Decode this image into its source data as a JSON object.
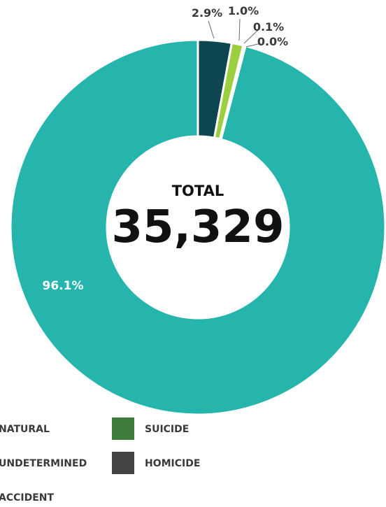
{
  "chart_data": {
    "type": "pie",
    "variant": "donut",
    "center_label": "TOTAL",
    "center_value": "35,329",
    "slices": [
      {
        "name": "HOMICIDE",
        "value": 2.9,
        "label": "2.9%",
        "color": "#0d4651"
      },
      {
        "name": "NATURAL",
        "value": 1.0,
        "label": "1.0%",
        "color": "#9bcf3f"
      },
      {
        "name": "SUICIDE",
        "value": 0.1,
        "label": "0.1%",
        "color": "#3f7d3c"
      },
      {
        "name": "UNDETERMINED",
        "value": 0.0,
        "label": "0.0%",
        "color": "#5a5a5a"
      },
      {
        "name": "ACCIDENT",
        "value": 96.1,
        "label": "96.1%",
        "color": "#26b5ad"
      }
    ],
    "legend": [
      {
        "label": "NATURAL",
        "color": "#9bcf3f"
      },
      {
        "label": "SUICIDE",
        "color": "#3f7d3c"
      },
      {
        "label": "UNDETERMINED",
        "color": "#5a5a5a"
      },
      {
        "label": "HOMICIDE",
        "color": "#444444"
      },
      {
        "label": "ACCIDENT",
        "color": "#26b5ad"
      }
    ],
    "legend_position": "bottom"
  }
}
